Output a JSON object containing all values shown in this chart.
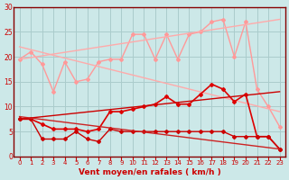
{
  "background_color": "#cce8e8",
  "grid_color": "#aacccc",
  "xlabel": "Vent moyen/en rafales ( km/h )",
  "xlabel_color": "#cc0000",
  "tick_color": "#cc0000",
  "axis_color": "#880000",
  "xlim": [
    0,
    23
  ],
  "ylim": [
    0,
    30
  ],
  "yticks": [
    0,
    5,
    10,
    15,
    20,
    25,
    30
  ],
  "xticks": [
    0,
    1,
    2,
    3,
    4,
    5,
    6,
    7,
    8,
    9,
    10,
    11,
    12,
    13,
    14,
    15,
    16,
    17,
    18,
    19,
    20,
    21,
    22,
    23
  ],
  "lines": [
    {
      "x": [
        0,
        1,
        2,
        3,
        4,
        5,
        6,
        7,
        8,
        9,
        10,
        11,
        12,
        13,
        14,
        15,
        16,
        17,
        18,
        19,
        20,
        21,
        22,
        23
      ],
      "y": [
        19.5,
        21.0,
        18.5,
        13.0,
        19.0,
        15.0,
        15.5,
        19.0,
        19.5,
        19.5,
        24.5,
        24.5,
        19.5,
        24.5,
        19.5,
        24.5,
        25.0,
        27.0,
        27.5,
        20.0,
        27.0,
        13.5,
        10.0,
        6.0
      ],
      "color": "#ff9999",
      "lw": 1.0,
      "marker": "D",
      "ms": 2.0
    },
    {
      "x": [
        0,
        23
      ],
      "y": [
        19.5,
        27.5
      ],
      "color": "#ffaaaa",
      "lw": 1.0,
      "marker": null,
      "ms": 0
    },
    {
      "x": [
        0,
        23
      ],
      "y": [
        22.0,
        9.0
      ],
      "color": "#ffaaaa",
      "lw": 1.0,
      "marker": null,
      "ms": 0
    },
    {
      "x": [
        0,
        1,
        2,
        3,
        4,
        5,
        6,
        7,
        8,
        9,
        10,
        11,
        12,
        13,
        14,
        15,
        16,
        17,
        18,
        19,
        20,
        21,
        22,
        23
      ],
      "y": [
        7.5,
        7.5,
        6.5,
        5.5,
        5.5,
        5.5,
        5.0,
        5.5,
        9.0,
        9.0,
        9.5,
        10.0,
        10.5,
        12.0,
        10.5,
        10.5,
        12.5,
        14.5,
        13.5,
        11.0,
        12.5,
        4.0,
        4.0,
        1.5
      ],
      "color": "#dd0000",
      "lw": 1.2,
      "marker": "D",
      "ms": 2.0
    },
    {
      "x": [
        0,
        23
      ],
      "y": [
        7.5,
        13.0
      ],
      "color": "#cc0000",
      "lw": 1.0,
      "marker": null,
      "ms": 0
    },
    {
      "x": [
        0,
        1,
        2,
        3,
        4,
        5,
        6,
        7,
        8,
        9,
        10,
        11,
        12,
        13,
        14,
        15,
        16,
        17,
        18,
        19,
        20,
        21,
        22,
        23
      ],
      "y": [
        7.5,
        7.5,
        3.5,
        3.5,
        3.5,
        5.0,
        3.5,
        3.0,
        5.5,
        5.0,
        5.0,
        5.0,
        5.0,
        5.0,
        5.0,
        5.0,
        5.0,
        5.0,
        5.0,
        4.0,
        4.0,
        4.0,
        4.0,
        1.5
      ],
      "color": "#cc0000",
      "lw": 1.0,
      "marker": "D",
      "ms": 2.0
    },
    {
      "x": [
        0,
        23
      ],
      "y": [
        8.0,
        1.5
      ],
      "color": "#cc2222",
      "lw": 1.0,
      "marker": null,
      "ms": 0
    }
  ]
}
